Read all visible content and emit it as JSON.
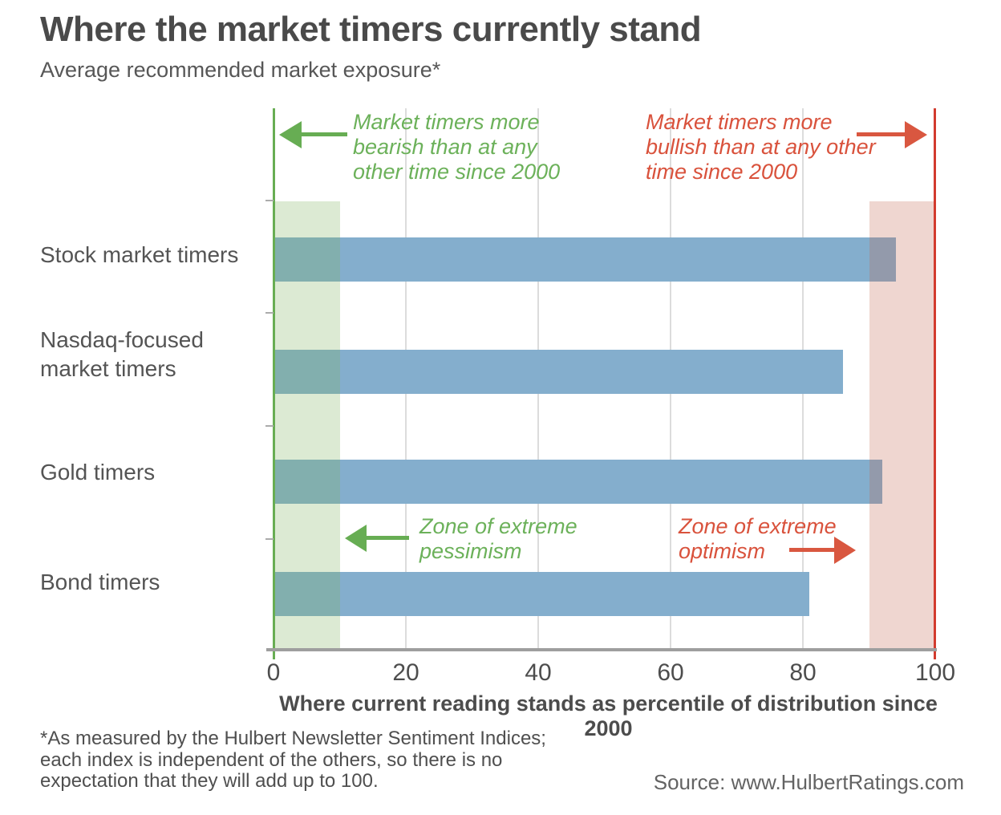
{
  "title": "Where the market timers currently stand",
  "subtitle": "Average recommended market exposure*",
  "chart_data": {
    "type": "bar",
    "orientation": "horizontal",
    "categories": [
      "Stock market timers",
      "Nasdaq-focused market timers",
      "Gold timers",
      "Bond timers"
    ],
    "values": [
      94,
      86,
      92,
      81
    ],
    "title": "Where the market timers currently stand",
    "subtitle": "Average recommended market exposure*",
    "xlabel": "Where current reading stands as percentile of distribution since 2000",
    "ylabel": "",
    "xlim": [
      0,
      100
    ],
    "x_ticks": [
      0,
      20,
      40,
      60,
      80,
      100
    ],
    "grid": "vertical gridlines at 20, 40, 60, 80",
    "legend": "none",
    "zones": [
      {
        "name": "Zone of extreme pessimism",
        "range": [
          0,
          10
        ],
        "color": "#d8e9cf"
      },
      {
        "name": "Zone of extreme optimism",
        "range": [
          90,
          100
        ],
        "color": "#f0d8d3"
      }
    ]
  },
  "annotations": {
    "top_left_text": "Market timers more bearish than at any other time since 2000",
    "top_right_text": "Market timers more bullish than at any other time since 2000",
    "mid_left_text": "Zone of extreme pessimism",
    "mid_right_text": "Zone of extreme optimism"
  },
  "footnote": "*As measured by the Hulbert Newsletter Sentiment Indices;\neach index is independent of the others, so there is no\nexpectation that they will add up to 100.",
  "source": "Source: www.HulbertRatings.com",
  "colors": {
    "bar_blue": "#84aecd",
    "accent_green": "#67ad53",
    "accent_red": "#d23b2e",
    "annotation_green": "#6cb15a",
    "annotation_red": "#d9523c",
    "title_gray": "#4a4a4a",
    "gridline": "#dcdcdc",
    "axis_gray": "#9e9e9e"
  }
}
